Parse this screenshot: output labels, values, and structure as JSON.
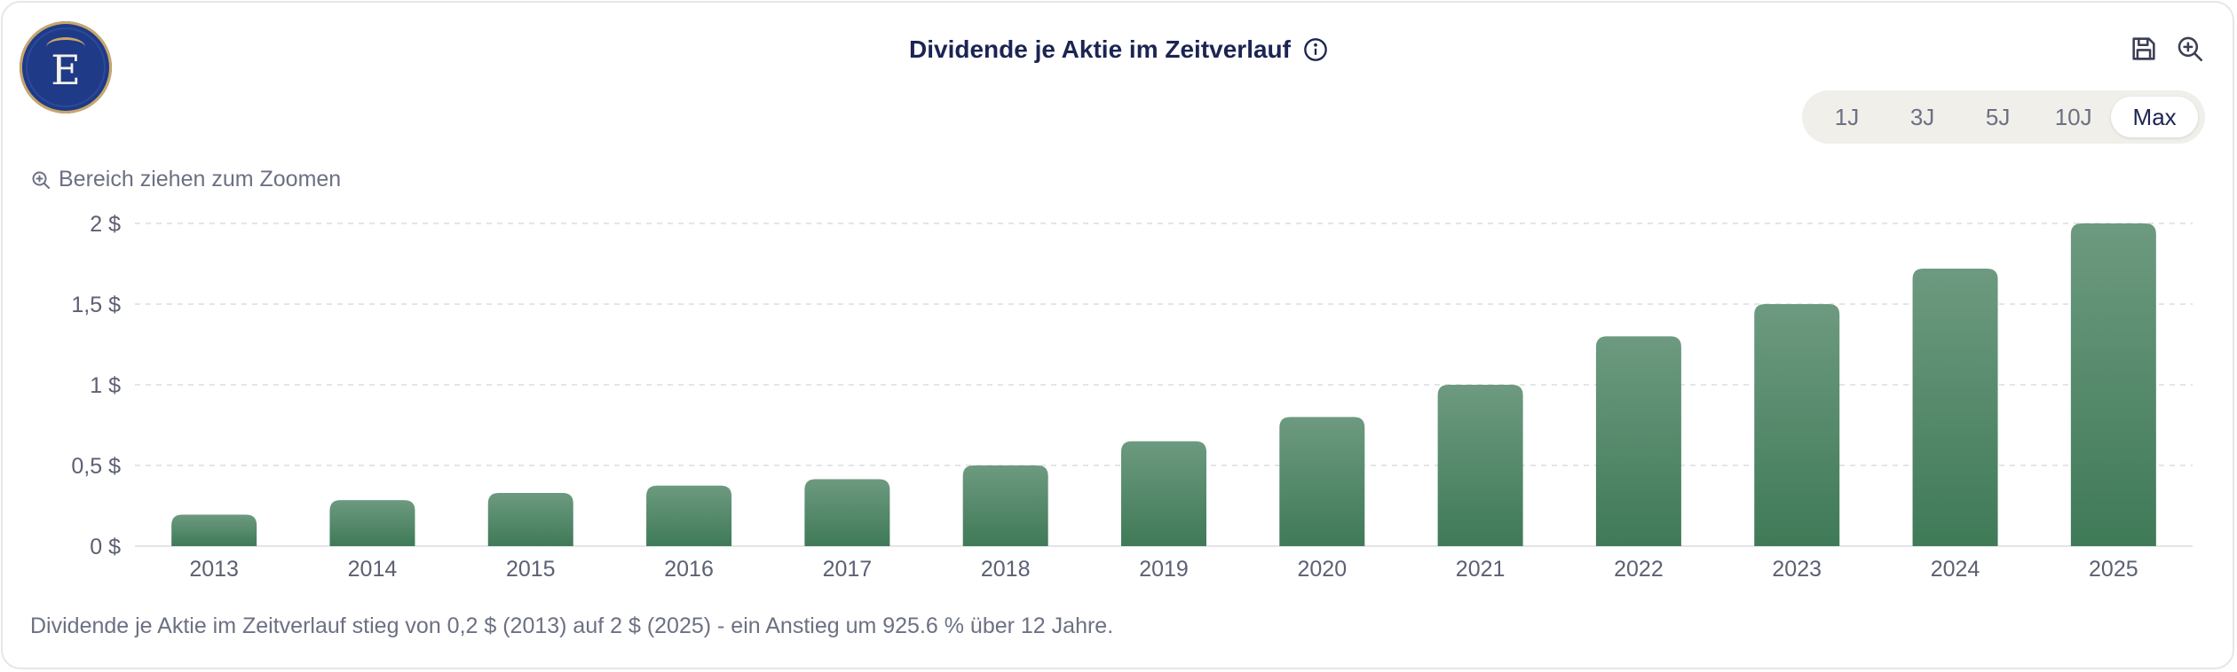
{
  "header": {
    "logo_letter": "E",
    "title": "Dividende je Aktie im Zeitverlauf",
    "icons": [
      "info-icon",
      "save-icon",
      "zoom-in-icon"
    ]
  },
  "range": {
    "options": [
      "1J",
      "3J",
      "5J",
      "10J",
      "Max"
    ],
    "selected": "Max"
  },
  "zoom_hint": "Bereich ziehen zum Zoomen",
  "footnote": "Dividende je Aktie im Zeitverlauf stieg von 0,2 $ (2013) auf 2 $ (2025) - ein Anstieg um 925.6 % über 12 Jahre.",
  "colors": {
    "bar_top": "#6d9a80",
    "bar_bottom": "#3f7a57",
    "grid": "#dcdce2",
    "axis_text": "#5c6072",
    "title": "#1c2452"
  },
  "chart_data": {
    "type": "bar",
    "categories": [
      "2013",
      "2014",
      "2015",
      "2016",
      "2017",
      "2018",
      "2019",
      "2020",
      "2021",
      "2022",
      "2023",
      "2024",
      "2025"
    ],
    "values": [
      0.195,
      0.285,
      0.33,
      0.375,
      0.415,
      0.5,
      0.65,
      0.8,
      1.0,
      1.3,
      1.5,
      1.72,
      2.0
    ],
    "ylim": [
      0,
      2
    ],
    "yticks": [
      0,
      0.5,
      1,
      1.5,
      2
    ],
    "ytick_labels": [
      "0 $",
      "0,5 $",
      "1 $",
      "1,5 $",
      "2 $"
    ],
    "grid": true,
    "title": "Dividende je Aktie im Zeitverlauf",
    "xlabel": "",
    "ylabel": ""
  }
}
